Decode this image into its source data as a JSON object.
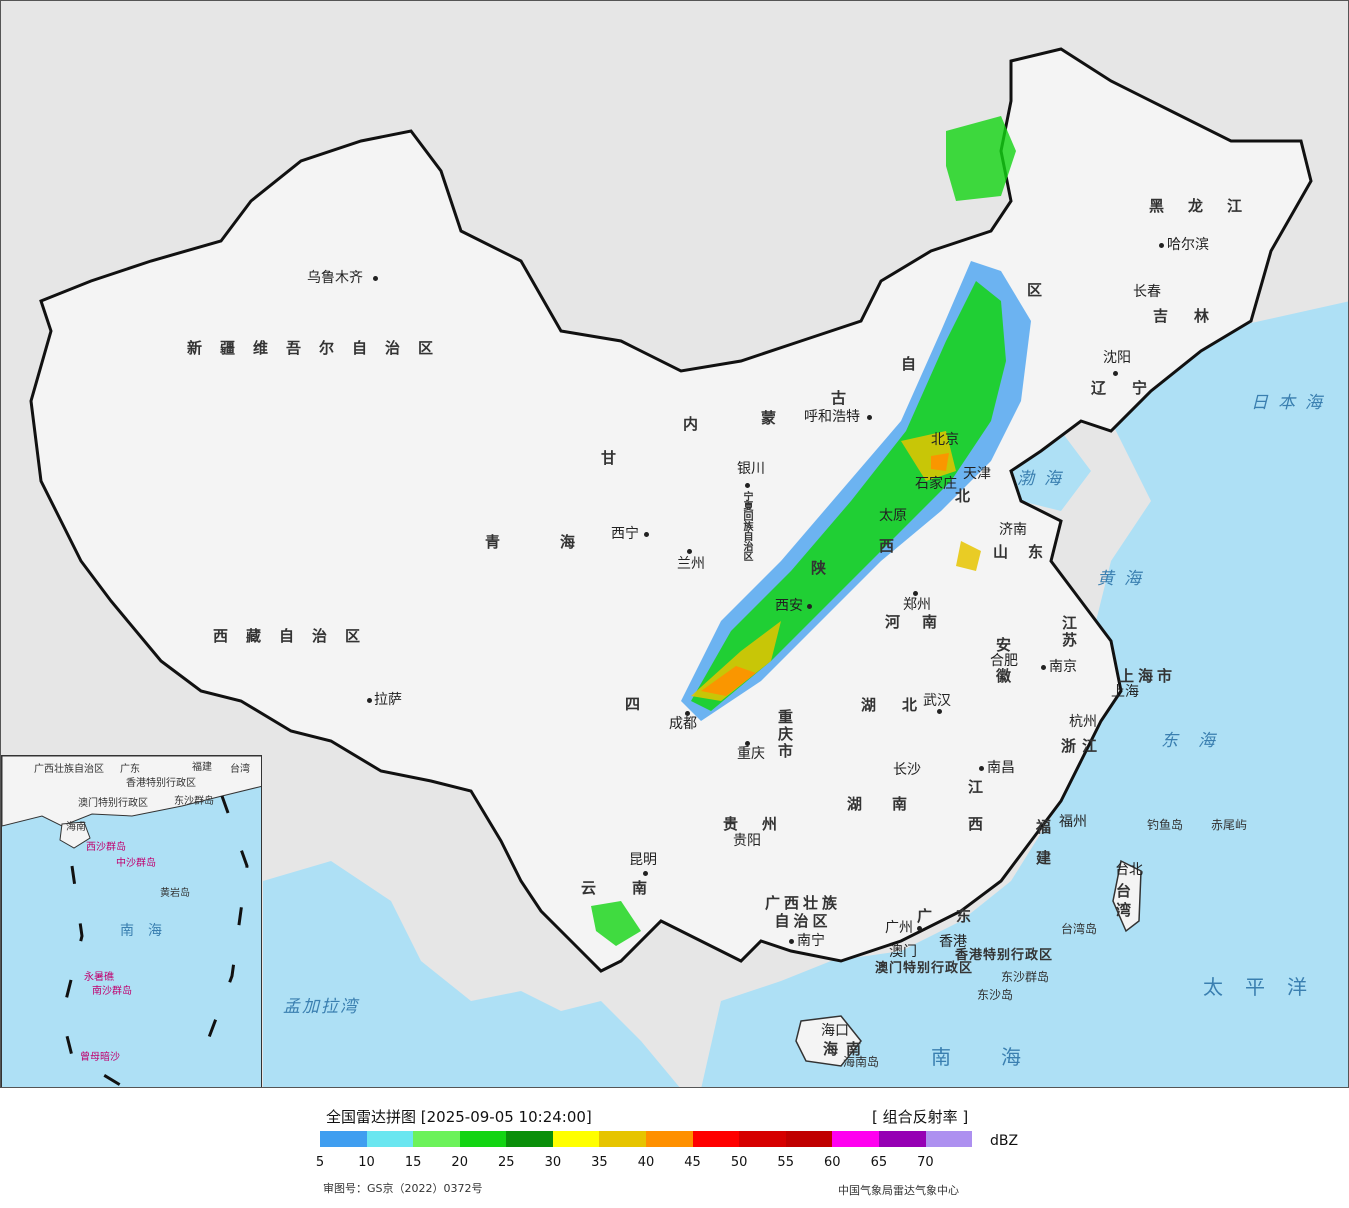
{
  "map": {
    "cities": [
      {
        "id": "urumqi",
        "name": "乌鲁木齐"
      },
      {
        "id": "lhasa",
        "name": "拉萨"
      },
      {
        "id": "xining",
        "name": "西宁"
      },
      {
        "id": "lanzhou",
        "name": "兰州"
      },
      {
        "id": "yinchuan",
        "name": "银川"
      },
      {
        "id": "hohhot",
        "name": "呼和浩特"
      },
      {
        "id": "beijing",
        "name": "北京"
      },
      {
        "id": "tianjin",
        "name": "天津"
      },
      {
        "id": "shijiazhuang",
        "name": "石家庄"
      },
      {
        "id": "taiyuan",
        "name": "太原"
      },
      {
        "id": "jinan",
        "name": "济南"
      },
      {
        "id": "zhengzhou",
        "name": "郑州"
      },
      {
        "id": "xian",
        "name": "西安"
      },
      {
        "id": "chengdu",
        "name": "成都"
      },
      {
        "id": "chongqing",
        "name": "重庆"
      },
      {
        "id": "wuhan",
        "name": "武汉"
      },
      {
        "id": "hefei",
        "name": "合肥"
      },
      {
        "id": "nanjing",
        "name": "南京"
      },
      {
        "id": "shanghai",
        "name": "上海"
      },
      {
        "id": "hangzhou",
        "name": "杭州"
      },
      {
        "id": "nanchang",
        "name": "南昌"
      },
      {
        "id": "changsha",
        "name": "长沙"
      },
      {
        "id": "guiyang",
        "name": "贵阳"
      },
      {
        "id": "kunming",
        "name": "昆明"
      },
      {
        "id": "nanning",
        "name": "南宁"
      },
      {
        "id": "guangzhou",
        "name": "广州"
      },
      {
        "id": "fuzhou",
        "name": "福州"
      },
      {
        "id": "taipei",
        "name": "台北"
      },
      {
        "id": "haikou",
        "name": "海口"
      },
      {
        "id": "shenyang",
        "name": "沈阳"
      },
      {
        "id": "changchun",
        "name": "长春"
      },
      {
        "id": "harbin",
        "name": "哈尔滨"
      },
      {
        "id": "macau",
        "name": "澳门"
      },
      {
        "id": "hongkong",
        "name": "香港"
      }
    ],
    "provinces": [
      {
        "id": "xinjiang",
        "name": "新疆维吾尔自治区"
      },
      {
        "id": "tibet",
        "name": "西藏自治区"
      },
      {
        "id": "qinghai",
        "name": "青海"
      },
      {
        "id": "gansu",
        "name": "甘"
      },
      {
        "id": "neimenggu-1",
        "name": "内"
      },
      {
        "id": "neimenggu-2",
        "name": "蒙"
      },
      {
        "id": "neimenggu-3",
        "name": "古"
      },
      {
        "id": "neimenggu-4",
        "name": "自"
      },
      {
        "id": "neimenggu-5",
        "name": "区"
      },
      {
        "id": "heilongjiang",
        "name": "黑龙江"
      },
      {
        "id": "jilin",
        "name": "吉林"
      },
      {
        "id": "liaoning",
        "name": "辽宁"
      },
      {
        "id": "hebei",
        "name": "北"
      },
      {
        "id": "shanxi",
        "name": "西"
      },
      {
        "id": "shaanxi",
        "name": "陕"
      },
      {
        "id": "shandong",
        "name": "山东"
      },
      {
        "id": "henan",
        "name": "河南"
      },
      {
        "id": "jiangsu",
        "name": "江苏"
      },
      {
        "id": "anhui",
        "name": "安徽"
      },
      {
        "id": "shanghai-shi",
        "name": "上海市"
      },
      {
        "id": "zhejiang",
        "name": "浙江"
      },
      {
        "id": "hubei",
        "name": "湖北"
      },
      {
        "id": "sichuan",
        "name": "四"
      },
      {
        "id": "chongqing-shi",
        "name": "重庆市"
      },
      {
        "id": "hunan",
        "name": "湖南"
      },
      {
        "id": "jiangxi",
        "name": "江西"
      },
      {
        "id": "fujian",
        "name": "福建"
      },
      {
        "id": "guizhou",
        "name": "贵州"
      },
      {
        "id": "yunnan",
        "name": "云南"
      },
      {
        "id": "guangxi",
        "name": "广西壮族自治区"
      },
      {
        "id": "guangdong",
        "name": "广东"
      },
      {
        "id": "hainan",
        "name": "海南"
      },
      {
        "id": "taiwan",
        "name": "台湾"
      },
      {
        "id": "ningxia",
        "name": "宁夏回族自治区"
      },
      {
        "id": "hk-sar",
        "name": "香港特别行政区"
      },
      {
        "id": "macau-sar",
        "name": "澳门特别行政区"
      }
    ],
    "seas": [
      {
        "id": "japan-sea",
        "name": "日本海"
      },
      {
        "id": "bohai",
        "name": "渤海"
      },
      {
        "id": "yellow-sea",
        "name": "黄海"
      },
      {
        "id": "east-sea",
        "name": "东海"
      },
      {
        "id": "pacific",
        "name": "太平洋"
      },
      {
        "id": "south-sea",
        "name": "南海"
      },
      {
        "id": "bengal",
        "name": "孟加拉湾"
      }
    ],
    "islands": [
      {
        "id": "diaoyu",
        "name": "钓鱼岛"
      },
      {
        "id": "chiwei",
        "name": "赤尾屿"
      },
      {
        "id": "dongsha-islands",
        "name": "东沙群岛"
      },
      {
        "id": "dongsha",
        "name": "东沙岛"
      },
      {
        "id": "taiwan-island",
        "name": "台湾岛"
      },
      {
        "id": "hainan-island",
        "name": "海南岛"
      }
    ],
    "inset": {
      "labels": [
        {
          "id": "guangxi",
          "name": "广西壮族自治区"
        },
        {
          "id": "guangdong",
          "name": "广东"
        },
        {
          "id": "fujian",
          "name": "福建"
        },
        {
          "id": "taiwan",
          "name": "台湾"
        },
        {
          "id": "hk",
          "name": "香港特别行政区"
        },
        {
          "id": "macau",
          "name": "澳门特别行政区"
        },
        {
          "id": "dongsha",
          "name": "东沙群岛"
        },
        {
          "id": "hainan",
          "name": "海南"
        },
        {
          "id": "xisha",
          "name": "西沙群岛"
        },
        {
          "id": "zhongsha",
          "name": "中沙群岛"
        },
        {
          "id": "huangyan",
          "name": "黄岩岛"
        },
        {
          "id": "nanhai",
          "name": "南海"
        },
        {
          "id": "nansha",
          "name": "南沙群岛"
        },
        {
          "id": "yongshu",
          "name": "永暑礁"
        },
        {
          "id": "zengmu",
          "name": "曾母暗沙"
        }
      ]
    }
  },
  "legend": {
    "title": "全国雷达拼图 [2025-09-05 10:24:00]",
    "product": "[ 组合反射率 ]",
    "unit": "dBZ",
    "ticks": [
      "5",
      "10",
      "15",
      "20",
      "25",
      "30",
      "35",
      "40",
      "45",
      "50",
      "55",
      "60",
      "65",
      "70"
    ],
    "colors": [
      "#3f9ef0",
      "#6ae6f0",
      "#6cf25a",
      "#13d413",
      "#0a8f0a",
      "#ffff00",
      "#e6c400",
      "#ff9000",
      "#ff0000",
      "#d60000",
      "#c00000",
      "#ff00f0",
      "#9600b4",
      "#ad90f0"
    ],
    "approval": "审图号：GS京（2022）0372号",
    "credit": "中国气象局雷达气象中心"
  }
}
